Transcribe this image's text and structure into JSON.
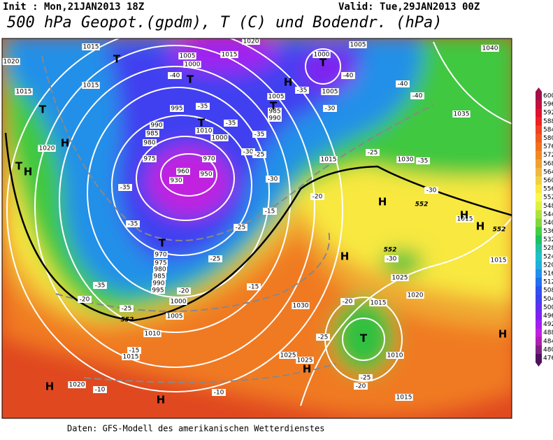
{
  "header": {
    "init": "Init : Mon,21JAN2013 18Z",
    "valid": "Valid: Tue,29JAN2013 00Z",
    "title": "500 hPa Geopot.(gpdm), T (C) und Bodendr. (hPa)"
  },
  "footer": "Daten: GFS-Modell des amerikanischen Wetterdienstes",
  "colorbar": {
    "labels": [
      600,
      596,
      592,
      588,
      584,
      580,
      576,
      572,
      568,
      564,
      560,
      556,
      552,
      548,
      544,
      540,
      536,
      532,
      528,
      524,
      520,
      516,
      512,
      508,
      504,
      500,
      496,
      492,
      488,
      484,
      480,
      476
    ],
    "colors": [
      "#a0104a",
      "#c0103c",
      "#e01030",
      "#f02020",
      "#f04020",
      "#f05a20",
      "#f07020",
      "#f08a20",
      "#f0a030",
      "#f0b840",
      "#f0d040",
      "#f8e840",
      "#f8f850",
      "#e0f040",
      "#b0e040",
      "#80d840",
      "#40d040",
      "#20c060",
      "#20c0a0",
      "#20c0c8",
      "#20b0e0",
      "#2090f0",
      "#2070f0",
      "#3050f0",
      "#4040f0",
      "#6030f0",
      "#8020f0",
      "#a020f0",
      "#c020e0",
      "#b020b0",
      "#802080",
      "#501060"
    ]
  },
  "map_labels": {
    "isobars": [
      "1015",
      "1020",
      "1015",
      "1005",
      "1000",
      "1015",
      "1020",
      "1000",
      "1005",
      "1040",
      "1015",
      "1005",
      "1005",
      "995",
      "990",
      "985",
      "980",
      "975",
      "985",
      "990",
      "1010",
      "1000",
      "970",
      "960",
      "950",
      "930",
      "1030",
      "1035",
      "1015",
      "1020",
      "970",
      "975",
      "980",
      "985",
      "990",
      "995",
      "1000",
      "1005",
      "1010",
      "1015",
      "1020",
      "1025",
      "1025",
      "1030",
      "1025",
      "1020",
      "1015",
      "1010",
      "1015",
      "1015",
      "1015"
    ],
    "temperatures": [
      "-40",
      "-35",
      "-35",
      "-30",
      "-40",
      "-40",
      "-40",
      "-35",
      "-35",
      "-30",
      "-25",
      "-25",
      "-35",
      "-35",
      "-35",
      "-35",
      "-30",
      "-30",
      "-25",
      "-20",
      "-15",
      "-20",
      "-20",
      "-25",
      "-15",
      "-15",
      "-10",
      "-10",
      "-25",
      "-25",
      "-20",
      "-30",
      "-25",
      "-20"
    ],
    "centers": [
      "T",
      "T",
      "H",
      "T",
      "H",
      "T",
      "H",
      "T",
      "T",
      "T",
      "T",
      "H",
      "H",
      "H",
      "H",
      "T",
      "H",
      "H",
      "H",
      "H"
    ],
    "contour_552": [
      "552",
      "552",
      "552",
      "552"
    ]
  }
}
